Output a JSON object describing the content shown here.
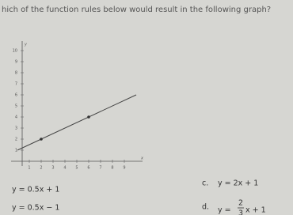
{
  "question": "hich of the function rules below would result in the following graph?",
  "graph": {
    "x_label": "x",
    "y_label": "y",
    "xticks": [
      1,
      2,
      3,
      4,
      5,
      6,
      7,
      8,
      9
    ],
    "yticks": [
      1,
      2,
      3,
      4,
      5,
      6,
      7,
      8,
      9,
      10
    ],
    "points": [
      [
        2,
        2
      ],
      [
        6,
        4
      ]
    ]
  },
  "options": [
    {
      "text": "y = 0.5x + 1"
    },
    {
      "text": "y = 0.5x − 1"
    },
    {
      "letter": "c.",
      "text": "y = 2x + 1"
    },
    {
      "letter": "d.",
      "prefix": "y =",
      "numerator": "2",
      "denominator": "3",
      "suffix": "x + 1"
    }
  ]
}
